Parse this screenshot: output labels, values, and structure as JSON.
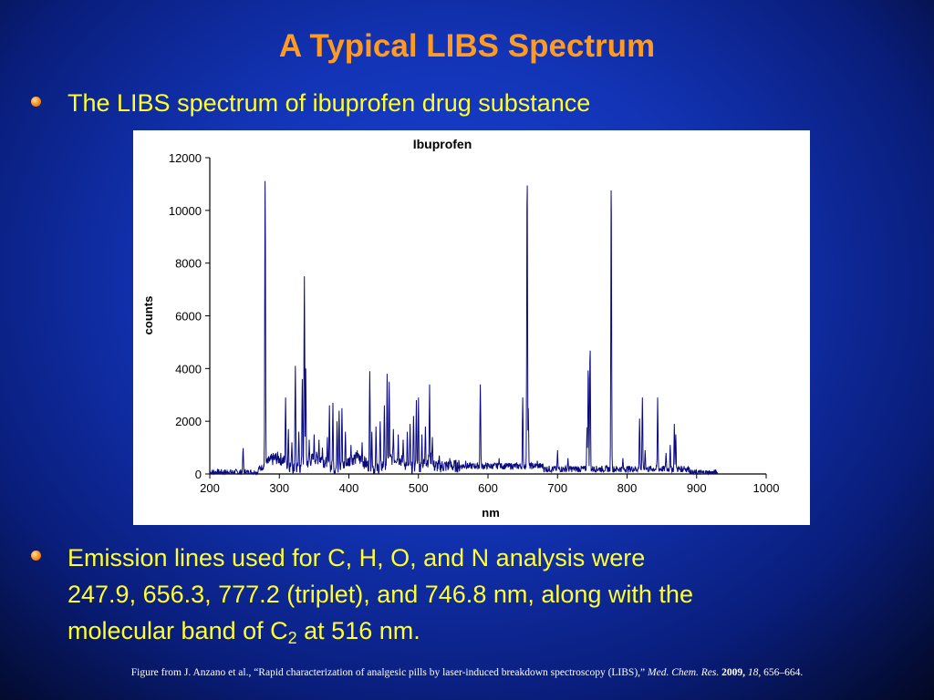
{
  "slide": {
    "title": "A Typical LIBS Spectrum",
    "bullet1": "The LIBS spectrum of ibuprofen drug substance",
    "bullet2": {
      "line1": "Emission lines used for C, H, O, and N analysis were",
      "line2": "247.9, 656.3, 777.2 (triplet), and 746.8 nm, along with the",
      "line3_pre": "molecular band of C",
      "line3_sub": "2",
      "line3_post": " at 516 nm."
    },
    "caption": {
      "prefix": "Figure from J. Anzano et al., “Rapid characterization of analgesic pills by laser-induced breakdown spectroscopy (LIBS),”",
      "journal": "Med. Chem. Res.",
      "year": "2009,",
      "volume": "18,",
      "pages": "656–664."
    },
    "colors": {
      "title": "#ff9a22",
      "bullet_text": "#ffff2e",
      "bullet_dot": "#ff9a22",
      "line": "#0a0a80"
    }
  },
  "chart_data": {
    "type": "line",
    "title": "Ibuprofen",
    "xlabel": "nm",
    "ylabel": "counts",
    "xlim": [
      200,
      1000
    ],
    "ylim": [
      0,
      12000
    ],
    "xticks": [
      200,
      300,
      400,
      500,
      600,
      700,
      800,
      900,
      1000
    ],
    "yticks": [
      0,
      2000,
      4000,
      6000,
      8000,
      10000,
      12000
    ],
    "baseline": 150,
    "peaks": [
      {
        "x": 247.9,
        "y": 1000
      },
      {
        "x": 279.6,
        "y": 11300
      },
      {
        "x": 285.2,
        "y": 600
      },
      {
        "x": 309,
        "y": 2900
      },
      {
        "x": 313,
        "y": 1700
      },
      {
        "x": 318,
        "y": 1200
      },
      {
        "x": 323,
        "y": 4100
      },
      {
        "x": 328,
        "y": 1600
      },
      {
        "x": 333,
        "y": 3600
      },
      {
        "x": 336,
        "y": 7500
      },
      {
        "x": 338,
        "y": 4000
      },
      {
        "x": 343,
        "y": 1300
      },
      {
        "x": 350,
        "y": 1500
      },
      {
        "x": 357,
        "y": 1300
      },
      {
        "x": 362,
        "y": 1000
      },
      {
        "x": 369,
        "y": 1400
      },
      {
        "x": 372,
        "y": 2600
      },
      {
        "x": 377,
        "y": 2700
      },
      {
        "x": 383,
        "y": 2000
      },
      {
        "x": 386,
        "y": 2400
      },
      {
        "x": 390,
        "y": 2500
      },
      {
        "x": 395,
        "y": 1600
      },
      {
        "x": 403,
        "y": 1100
      },
      {
        "x": 412,
        "y": 900
      },
      {
        "x": 419,
        "y": 1200
      },
      {
        "x": 430,
        "y": 3900
      },
      {
        "x": 433,
        "y": 1600
      },
      {
        "x": 439,
        "y": 1800
      },
      {
        "x": 445,
        "y": 2000
      },
      {
        "x": 451,
        "y": 2600
      },
      {
        "x": 455,
        "y": 3800
      },
      {
        "x": 458,
        "y": 3500
      },
      {
        "x": 464,
        "y": 1700
      },
      {
        "x": 471,
        "y": 1500
      },
      {
        "x": 478,
        "y": 1300
      },
      {
        "x": 484,
        "y": 1600
      },
      {
        "x": 488,
        "y": 1900
      },
      {
        "x": 493,
        "y": 2200
      },
      {
        "x": 497,
        "y": 2800
      },
      {
        "x": 500,
        "y": 2900
      },
      {
        "x": 505,
        "y": 1500
      },
      {
        "x": 510,
        "y": 1800
      },
      {
        "x": 516,
        "y": 3400
      },
      {
        "x": 520,
        "y": 1400
      },
      {
        "x": 530,
        "y": 700
      },
      {
        "x": 545,
        "y": 600
      },
      {
        "x": 568,
        "y": 500
      },
      {
        "x": 589,
        "y": 3400
      },
      {
        "x": 616,
        "y": 600
      },
      {
        "x": 650,
        "y": 2900
      },
      {
        "x": 656.3,
        "y": 11700
      },
      {
        "x": 658,
        "y": 2500
      },
      {
        "x": 671,
        "y": 500
      },
      {
        "x": 700,
        "y": 900
      },
      {
        "x": 715,
        "y": 600
      },
      {
        "x": 742.4,
        "y": 1800
      },
      {
        "x": 744.2,
        "y": 4200
      },
      {
        "x": 746.8,
        "y": 5000
      },
      {
        "x": 777.2,
        "y": 11500
      },
      {
        "x": 794,
        "y": 600
      },
      {
        "x": 818,
        "y": 2100
      },
      {
        "x": 822,
        "y": 2900
      },
      {
        "x": 826,
        "y": 900
      },
      {
        "x": 844,
        "y": 2900
      },
      {
        "x": 856,
        "y": 800
      },
      {
        "x": 862,
        "y": 1100
      },
      {
        "x": 868,
        "y": 1900
      },
      {
        "x": 870,
        "y": 1500
      },
      {
        "x": 882,
        "y": 300
      }
    ]
  }
}
